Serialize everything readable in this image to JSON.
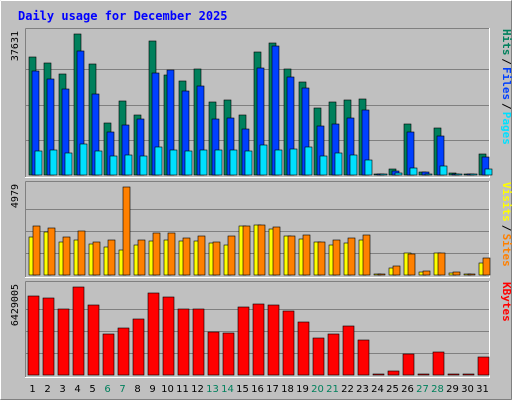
{
  "title": "Daily usage for December 2025",
  "colors": {
    "background": "#c0c0c0",
    "title": "#0000ff",
    "hits": "#00805c",
    "files": "#0040ff",
    "pages": "#00e0ff",
    "visits": "#ffff00",
    "sites": "#ff8000",
    "kbytes": "#ff0000",
    "weekend": "#00805c"
  },
  "chart_data": [
    {
      "type": "bar",
      "panel": "requests",
      "ymax_label": "37631",
      "ylim": [
        0,
        37631
      ],
      "grid": true,
      "categories": [
        "1",
        "2",
        "3",
        "4",
        "5",
        "6",
        "7",
        "8",
        "9",
        "10",
        "11",
        "12",
        "13",
        "14",
        "15",
        "16",
        "17",
        "18",
        "19",
        "20",
        "21",
        "22",
        "23",
        "24",
        "25",
        "26",
        "27",
        "28",
        "29",
        "30",
        "31"
      ],
      "weekend_days": [
        "6",
        "7",
        "13",
        "14",
        "20",
        "21",
        "27",
        "28"
      ],
      "legend_right": [
        "Pages",
        "Files",
        "Hits"
      ],
      "series": [
        {
          "name": "Hits",
          "values": [
            31500,
            29800,
            26900,
            37631,
            29500,
            14000,
            19800,
            16000,
            35800,
            26800,
            25000,
            28300,
            19500,
            19900,
            16100,
            32900,
            35200,
            28400,
            24900,
            18000,
            19600,
            20100,
            20300,
            200,
            1500,
            13500,
            900,
            12500,
            500,
            50,
            5500
          ]
        },
        {
          "name": "Files",
          "values": [
            27800,
            25700,
            23000,
            33000,
            21500,
            11400,
            13300,
            14900,
            27200,
            28000,
            22500,
            23800,
            15000,
            15200,
            12400,
            28600,
            34500,
            26100,
            23100,
            13000,
            13500,
            15200,
            17400,
            150,
            1200,
            11500,
            700,
            10400,
            400,
            30,
            4800
          ]
        },
        {
          "name": "Pages",
          "values": [
            6500,
            6700,
            6000,
            8200,
            6500,
            5000,
            5400,
            5200,
            7400,
            6600,
            6400,
            6600,
            6700,
            6800,
            6500,
            8000,
            6800,
            7000,
            7500,
            5200,
            6000,
            5400,
            4100,
            200,
            500,
            2000,
            200,
            2300,
            300,
            20,
            1600
          ]
        }
      ]
    },
    {
      "type": "bar",
      "panel": "visitors",
      "ymax_label": "4979",
      "ylim": [
        0,
        4979
      ],
      "grid": true,
      "categories": [
        "1",
        "2",
        "3",
        "4",
        "5",
        "6",
        "7",
        "8",
        "9",
        "10",
        "11",
        "12",
        "13",
        "14",
        "15",
        "16",
        "17",
        "18",
        "19",
        "20",
        "21",
        "22",
        "23",
        "24",
        "25",
        "26",
        "27",
        "28",
        "29",
        "30",
        "31"
      ],
      "legend_right": [
        "Sites",
        "Visits"
      ],
      "series": [
        {
          "name": "Visits",
          "values": [
            2150,
            2450,
            1850,
            1960,
            1780,
            1600,
            1400,
            1720,
            1930,
            1970,
            1950,
            1950,
            1820,
            1690,
            2800,
            2850,
            2620,
            2230,
            2040,
            1850,
            1720,
            1800,
            2000,
            50,
            400,
            1240,
            170,
            1230,
            100,
            20,
            700
          ]
        },
        {
          "name": "Sites",
          "values": [
            2750,
            2650,
            2150,
            2500,
            1890,
            2000,
            4979,
            1970,
            2380,
            2370,
            2080,
            2220,
            1860,
            2180,
            2750,
            2850,
            2700,
            2200,
            2250,
            1850,
            1960,
            2100,
            2280,
            60,
            500,
            1180,
            220,
            1250,
            170,
            30,
            980
          ]
        }
      ]
    },
    {
      "type": "bar",
      "panel": "kbytes",
      "ymax_label": "6429005",
      "ylim": [
        0,
        6429005
      ],
      "grid": true,
      "categories": [
        "1",
        "2",
        "3",
        "4",
        "5",
        "6",
        "7",
        "8",
        "9",
        "10",
        "11",
        "12",
        "13",
        "14",
        "15",
        "16",
        "17",
        "18",
        "19",
        "20",
        "21",
        "22",
        "23",
        "24",
        "25",
        "26",
        "27",
        "28",
        "29",
        "30",
        "31"
      ],
      "legend_right": [
        "KBytes"
      ],
      "series": [
        {
          "name": "KBytes",
          "values": [
            5800000,
            5640000,
            4800000,
            6429005,
            5150000,
            2990000,
            3420000,
            4100000,
            6000000,
            5720000,
            4820000,
            4820000,
            3150000,
            3100000,
            4990000,
            5200000,
            5100000,
            4700000,
            3840000,
            2690000,
            2990000,
            3610000,
            2590000,
            60000,
            300000,
            1500000,
            100000,
            1650000,
            50000,
            20000,
            1300000
          ]
        }
      ]
    }
  ]
}
